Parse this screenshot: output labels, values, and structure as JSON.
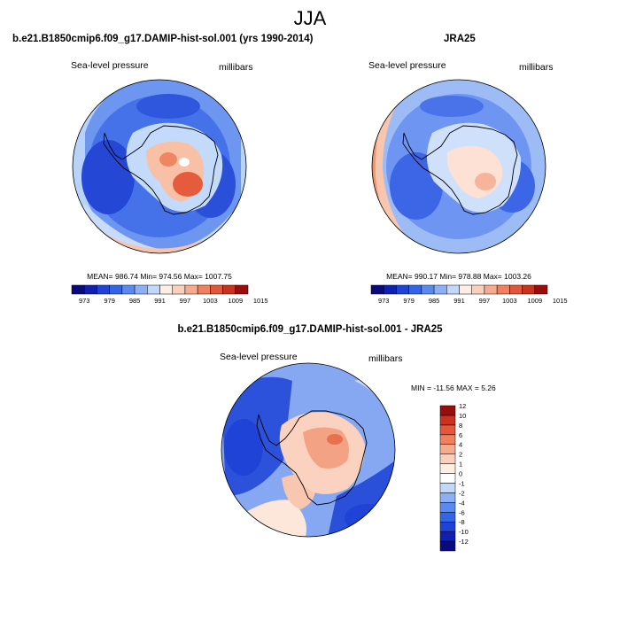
{
  "main_title": "JJA",
  "colors": {
    "sla": [
      "#0a0a7d",
      "#0f1fb0",
      "#1f43d6",
      "#3366e6",
      "#5a8af0",
      "#8cb0f5",
      "#c2d8fa",
      "#ffeee4",
      "#fbd0bb",
      "#f7ab8e",
      "#f0805f",
      "#e3573a",
      "#c8321e",
      "#990d0d"
    ],
    "diff": [
      "#0a0a7d",
      "#0f1fb0",
      "#1f43d6",
      "#3366e6",
      "#5a8af0",
      "#8cb0f5",
      "#c2d8fa",
      "#ffffff",
      "#ffeee4",
      "#fbd0bb",
      "#f7ab8e",
      "#f0805f",
      "#e3573a",
      "#c8321e",
      "#990d0d"
    ]
  },
  "panels": [
    {
      "title": "b.e21.B1850cmip6.f09_g17.DAMIP-hist-sol.001 (yrs 1990-2014)",
      "left_label": "Sea-level pressure",
      "right_label": "millibars",
      "stats": "MEAN= 986.74  Min= 974.56  Max= 1007.75"
    },
    {
      "title": "JRA25",
      "left_label": "Sea-level pressure",
      "right_label": "millibars",
      "stats": "MEAN= 990.17  Min= 978.88  Max= 1003.26"
    },
    {
      "title": "b.e21.B1850cmip6.f09_g17.DAMIP-hist-sol.001 - JRA25",
      "left_label": "Sea-level pressure",
      "right_label": "millibars",
      "stats": "MIN = -11.56 MAX =  5.26"
    }
  ],
  "chart_data": [
    {
      "type": "heatmap",
      "projection": "south-polar-stereographic",
      "variable": "Sea-level pressure",
      "units": "millibars",
      "mean": 986.74,
      "min": 974.56,
      "max": 1007.75,
      "colorbar_levels": [
        970,
        973,
        976,
        979,
        982,
        985,
        988,
        991,
        994,
        997,
        1000,
        1003,
        1006,
        1009,
        1012,
        1015
      ],
      "colorbar_tick_labels": [
        "973",
        "979",
        "985",
        "991",
        "997",
        "1003",
        "1009",
        "1015"
      ]
    },
    {
      "type": "heatmap",
      "projection": "south-polar-stereographic",
      "variable": "Sea-level pressure",
      "units": "millibars",
      "mean": 990.17,
      "min": 978.88,
      "max": 1003.26,
      "colorbar_levels": [
        970,
        973,
        976,
        979,
        982,
        985,
        988,
        991,
        994,
        997,
        1000,
        1003,
        1006,
        1009,
        1012,
        1015
      ],
      "colorbar_tick_labels": [
        "973",
        "979",
        "985",
        "991",
        "997",
        "1003",
        "1009",
        "1015"
      ]
    },
    {
      "type": "heatmap",
      "projection": "south-polar-stereographic",
      "variable": "Sea-level pressure difference",
      "units": "millibars",
      "min": -11.56,
      "max": 5.26,
      "colorbar_levels": [
        -12,
        -10,
        -8,
        -6,
        -4,
        -2,
        -1,
        0,
        1,
        2,
        4,
        6,
        8,
        10,
        12
      ],
      "colorbar_tick_labels": [
        "-12",
        "-10",
        "-8",
        "-6",
        "-4",
        "-2",
        "-1",
        "0",
        "1",
        "2",
        "4",
        "6",
        "8",
        "10",
        "12"
      ]
    }
  ]
}
